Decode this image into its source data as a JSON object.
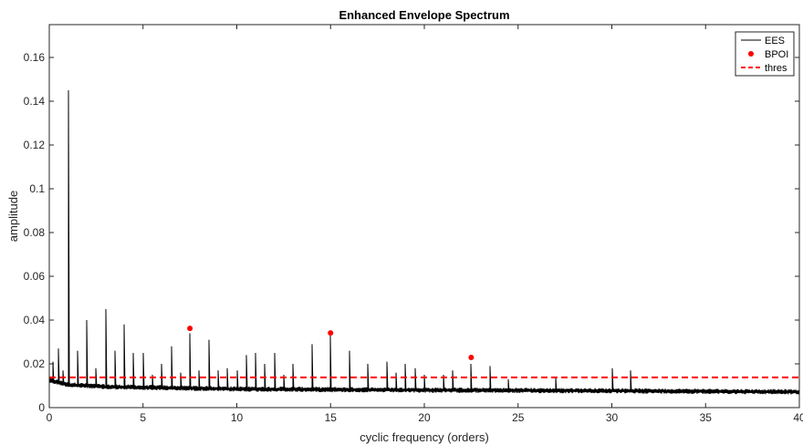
{
  "chart_data": {
    "type": "line",
    "title": "Enhanced Envelope Spectrum",
    "xlabel": "cyclic frequency (orders)",
    "ylabel": "amplitude",
    "xlim": [
      0,
      40
    ],
    "ylim": [
      0,
      0.175
    ],
    "xticks": [
      0,
      5,
      10,
      15,
      20,
      25,
      30,
      35,
      40
    ],
    "xtick_labels": [
      "0",
      "5",
      "10",
      "15",
      "20",
      "25",
      "30",
      "35",
      "40"
    ],
    "yticks": [
      0,
      0.02,
      0.04,
      0.06,
      0.08,
      0.1,
      0.12,
      0.14,
      0.16
    ],
    "ytick_labels": [
      "0",
      "0.02",
      "0.04",
      "0.06",
      "0.08",
      "0.1",
      "0.12",
      "0.14",
      "0.16"
    ],
    "grid": false,
    "legend_position": "top-right",
    "series": [
      {
        "name": "EES",
        "kind": "line",
        "color": "#000000",
        "baseline": [
          [
            0,
            0.0125
          ],
          [
            1,
            0.0105
          ],
          [
            3,
            0.0095
          ],
          [
            10,
            0.0085
          ],
          [
            20,
            0.008
          ],
          [
            30,
            0.0077
          ],
          [
            40,
            0.0072
          ]
        ],
        "noise_amplitude": 0.0012,
        "peaks": [
          [
            0.2,
            0.021
          ],
          [
            0.5,
            0.027
          ],
          [
            0.75,
            0.017
          ],
          [
            1.0,
            0.145
          ],
          [
            1.5,
            0.026
          ],
          [
            2.0,
            0.04
          ],
          [
            2.5,
            0.018
          ],
          [
            3.0,
            0.045
          ],
          [
            3.5,
            0.026
          ],
          [
            4.0,
            0.038
          ],
          [
            4.5,
            0.025
          ],
          [
            5.0,
            0.025
          ],
          [
            5.5,
            0.015
          ],
          [
            6.0,
            0.02
          ],
          [
            6.5,
            0.028
          ],
          [
            7.0,
            0.016
          ],
          [
            7.5,
            0.034
          ],
          [
            8.0,
            0.017
          ],
          [
            8.5,
            0.031
          ],
          [
            9.0,
            0.017
          ],
          [
            9.5,
            0.018
          ],
          [
            10.0,
            0.017
          ],
          [
            10.5,
            0.024
          ],
          [
            11.0,
            0.025
          ],
          [
            11.5,
            0.02
          ],
          [
            12.0,
            0.025
          ],
          [
            12.5,
            0.015
          ],
          [
            13.0,
            0.02
          ],
          [
            14.0,
            0.029
          ],
          [
            15.0,
            0.033
          ],
          [
            16.0,
            0.026
          ],
          [
            17.0,
            0.02
          ],
          [
            18.0,
            0.021
          ],
          [
            18.5,
            0.016
          ],
          [
            19.0,
            0.02
          ],
          [
            19.5,
            0.018
          ],
          [
            20.0,
            0.015
          ],
          [
            21.0,
            0.015
          ],
          [
            21.5,
            0.017
          ],
          [
            22.5,
            0.02
          ],
          [
            23.5,
            0.019
          ],
          [
            24.5,
            0.013
          ],
          [
            27.0,
            0.014
          ],
          [
            30.0,
            0.018
          ],
          [
            31.0,
            0.017
          ]
        ]
      },
      {
        "name": "BPOI",
        "kind": "markers",
        "color": "#ff0000",
        "x": [
          7.5,
          15.0,
          22.5
        ],
        "y": [
          0.0362,
          0.0341,
          0.0229
        ]
      },
      {
        "name": "thres",
        "kind": "dashed-line",
        "color": "#ff0000",
        "x": [
          0,
          40
        ],
        "y": [
          0.0138,
          0.0138
        ]
      }
    ]
  }
}
